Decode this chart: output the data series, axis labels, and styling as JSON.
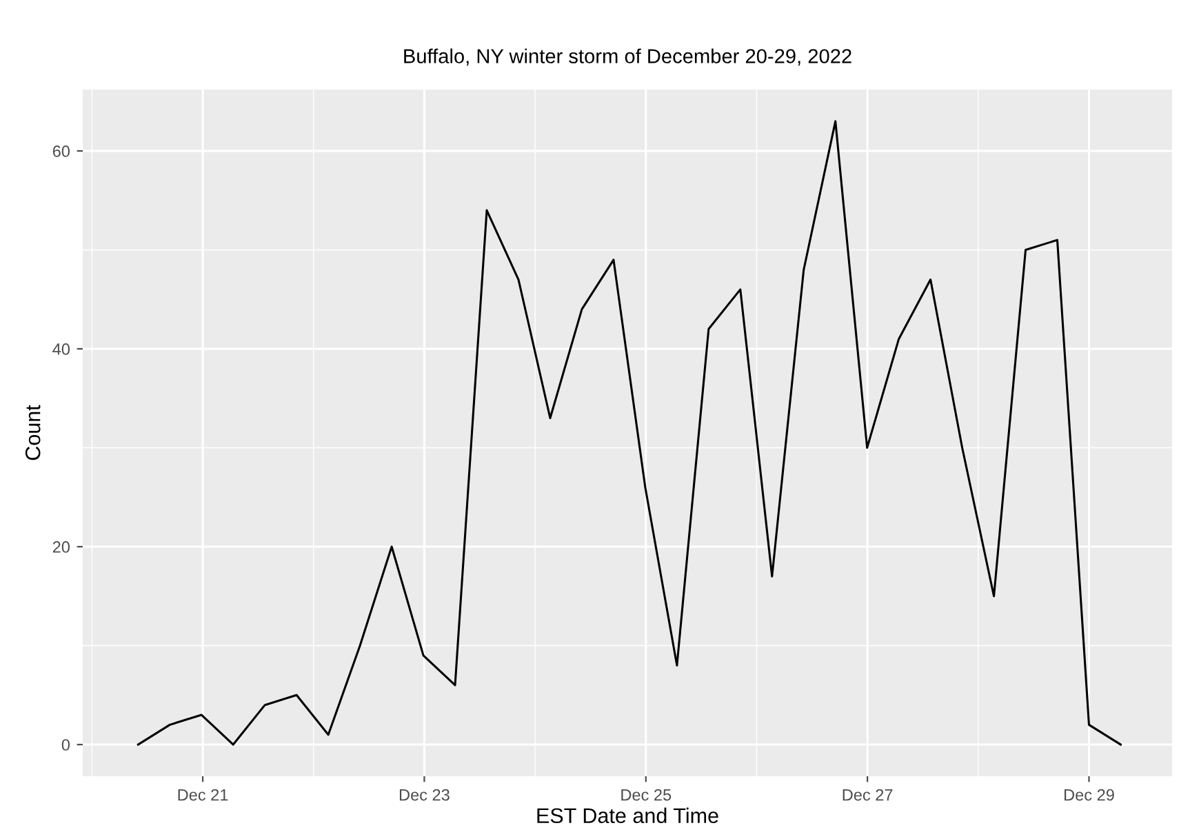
{
  "chart_data": {
    "type": "line",
    "subtitle": "Buffalo, NY winter storm of December 20-29, 2022",
    "xlabel": "EST Date and Time",
    "ylabel": "Count",
    "x": [
      "2022-12-20T10:00",
      "2022-12-20T16:52",
      "2022-12-20T23:44",
      "2022-12-21T06:36",
      "2022-12-21T13:28",
      "2022-12-21T20:20",
      "2022-12-22T03:12",
      "2022-12-22T10:04",
      "2022-12-22T16:56",
      "2022-12-22T23:48",
      "2022-12-23T06:40",
      "2022-12-23T13:32",
      "2022-12-23T20:24",
      "2022-12-24T03:16",
      "2022-12-24T10:08",
      "2022-12-24T17:00",
      "2022-12-24T23:52",
      "2022-12-25T06:44",
      "2022-12-25T13:36",
      "2022-12-25T20:28",
      "2022-12-26T03:20",
      "2022-12-26T10:12",
      "2022-12-26T17:04",
      "2022-12-26T23:56",
      "2022-12-27T06:48",
      "2022-12-27T13:40",
      "2022-12-27T20:32",
      "2022-12-28T03:24",
      "2022-12-28T10:16",
      "2022-12-28T17:08",
      "2022-12-29T00:00",
      "2022-12-29T06:52"
    ],
    "series": [
      {
        "color": "#000000",
        "values": [
          0,
          2,
          3,
          0,
          4,
          5,
          1,
          10,
          20,
          9,
          6,
          54,
          47,
          33,
          44,
          49,
          26,
          8,
          42,
          46,
          17,
          48,
          63,
          30,
          41,
          47,
          30,
          15,
          50,
          51,
          2,
          0
        ]
      }
    ],
    "xlim": [
      "2022-12-19T22:00",
      "2022-12-29T18:00"
    ],
    "xticks": [
      {
        "value": "2022-12-21",
        "label": "Dec 21"
      },
      {
        "value": "2022-12-23",
        "label": "Dec 23"
      },
      {
        "value": "2022-12-25",
        "label": "Dec 25"
      },
      {
        "value": "2022-12-27",
        "label": "Dec 27"
      },
      {
        "value": "2022-12-29",
        "label": "Dec 29"
      }
    ],
    "ylim": [
      -3.2,
      66.2
    ],
    "yticks": [
      0,
      20,
      40,
      60
    ],
    "grid": true,
    "marker": "none",
    "line_style": "solid"
  }
}
